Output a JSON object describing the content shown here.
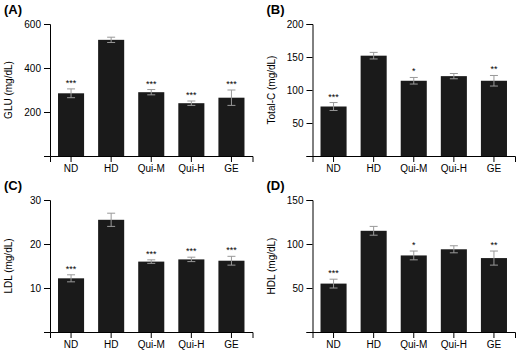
{
  "chart_data": [
    {
      "type": "bar",
      "title": "(A)",
      "ylabel": "GLU (mg/dL)",
      "categories": [
        "ND",
        "HD",
        "Qui-M",
        "Qui-H",
        "GE"
      ],
      "values": [
        285,
        528,
        290,
        240,
        265
      ],
      "errors": [
        20,
        12,
        12,
        10,
        35
      ],
      "annotations": [
        "***",
        null,
        "***",
        "***",
        "***"
      ],
      "color": "#1a1a1a",
      "ylim": [
        0,
        600
      ],
      "yticks": [
        {
          "value": 0,
          "label": null
        },
        200,
        400,
        600
      ],
      "grid": false
    },
    {
      "type": "bar",
      "title": "(B)",
      "ylabel": "Total-C (mg/dL)",
      "categories": [
        "ND",
        "HD",
        "Qui-M",
        "Qui-H",
        "GE"
      ],
      "values": [
        75,
        152,
        114,
        121,
        114
      ],
      "errors": [
        6,
        5,
        5,
        4,
        8
      ],
      "annotations": [
        "***",
        null,
        "*",
        null,
        "**"
      ],
      "color": "#1a1a1a",
      "ylim": [
        0,
        200
      ],
      "yticks": [
        {
          "value": 0,
          "label": null
        },
        50,
        100,
        150,
        200
      ],
      "grid": false
    },
    {
      "type": "bar",
      "title": "(C)",
      "ylabel": "LDL (mg/dL)",
      "categories": [
        "ND",
        "HD",
        "Qui-M",
        "Qui-H",
        "GE"
      ],
      "values": [
        12.2,
        25.5,
        16.0,
        16.5,
        16.2
      ],
      "errors": [
        0.8,
        1.5,
        0.4,
        0.5,
        1.0
      ],
      "annotations": [
        "***",
        null,
        "***",
        "***",
        "***"
      ],
      "color": "#1a1a1a",
      "ylim": [
        0,
        30
      ],
      "yticks": [
        {
          "value": 0,
          "label": null
        },
        10,
        20,
        30
      ],
      "grid": false
    },
    {
      "type": "bar",
      "title": "(D)",
      "ylabel": "HDL (mg/dL)",
      "categories": [
        "ND",
        "HD",
        "Qui-M",
        "Qui-H",
        "GE"
      ],
      "values": [
        55,
        115,
        87,
        94,
        84
      ],
      "errors": [
        5,
        5,
        5,
        4,
        8
      ],
      "annotations": [
        "***",
        null,
        "*",
        null,
        "**"
      ],
      "color": "#1a1a1a",
      "ylim": [
        0,
        150
      ],
      "yticks": [
        {
          "value": 0,
          "label": null
        },
        50,
        100,
        150
      ],
      "grid": false
    }
  ]
}
